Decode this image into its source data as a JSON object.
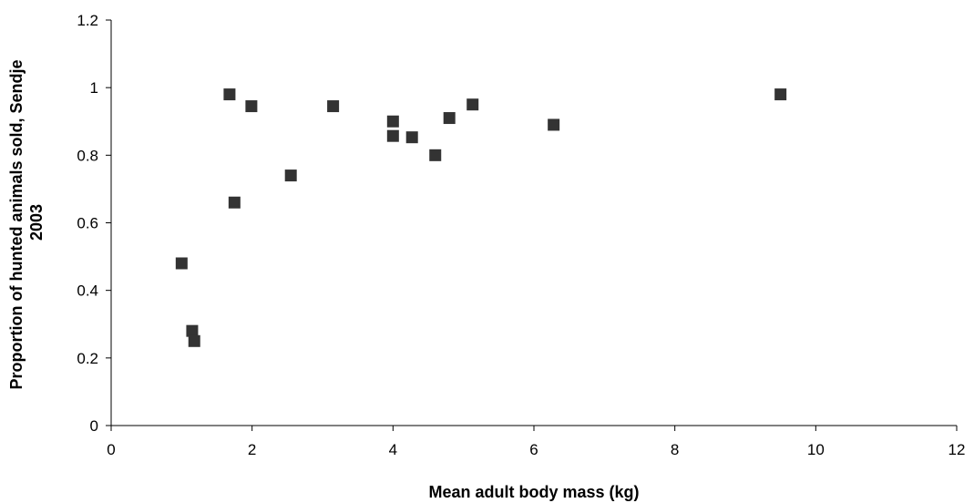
{
  "chart_data": {
    "type": "scatter",
    "title": "",
    "xlabel": "Mean adult body mass (kg)",
    "ylabel_line1": "Proportion of hunted animals sold, Sendje",
    "ylabel_line2": "2003",
    "xlim": [
      0,
      12
    ],
    "ylim": [
      0,
      1.2
    ],
    "x_ticks": [
      "0",
      "2",
      "4",
      "6",
      "8",
      "10",
      "12"
    ],
    "y_ticks": [
      "0",
      "0.2",
      "0.4",
      "0.6",
      "0.8",
      "1",
      "1.2"
    ],
    "grid": false,
    "legend": "none",
    "marker": "square",
    "marker_color": "#333333",
    "points": [
      {
        "x": 1.0,
        "y": 0.48
      },
      {
        "x": 1.15,
        "y": 0.28
      },
      {
        "x": 1.18,
        "y": 0.25
      },
      {
        "x": 1.68,
        "y": 0.98
      },
      {
        "x": 1.75,
        "y": 0.66
      },
      {
        "x": 1.99,
        "y": 0.945
      },
      {
        "x": 2.55,
        "y": 0.74
      },
      {
        "x": 3.15,
        "y": 0.945
      },
      {
        "x": 4.0,
        "y": 0.9
      },
      {
        "x": 4.0,
        "y": 0.857
      },
      {
        "x": 4.27,
        "y": 0.853
      },
      {
        "x": 4.6,
        "y": 0.8
      },
      {
        "x": 4.8,
        "y": 0.91
      },
      {
        "x": 5.13,
        "y": 0.95
      },
      {
        "x": 6.28,
        "y": 0.89
      },
      {
        "x": 9.5,
        "y": 0.98
      }
    ]
  }
}
